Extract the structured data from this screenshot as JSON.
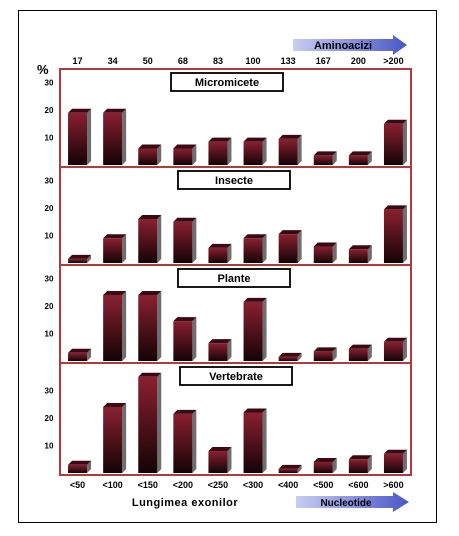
{
  "chart_data": {
    "type": "bar",
    "unit_label": "%",
    "top_axis": {
      "label": "Aminoacizi",
      "ticks": [
        "17",
        "34",
        "50",
        "68",
        "83",
        "100",
        "133",
        "167",
        "200",
        ">200"
      ]
    },
    "bottom_axis": {
      "label": "Nucleotide",
      "ticks": [
        "<50",
        "<100",
        "<150",
        "<200",
        "<250",
        "<300",
        "<400",
        "<500",
        "<600",
        ">600"
      ]
    },
    "xlabel": "Lungimea exonilor",
    "ylim": [
      0,
      36
    ],
    "yticks": [
      10,
      20,
      30
    ],
    "panels": [
      {
        "title": "Micromicete",
        "values": [
          19,
          19,
          6,
          6,
          8.5,
          8.5,
          9.5,
          3.5,
          3.5,
          15
        ]
      },
      {
        "title": "Insecte",
        "values": [
          1.5,
          9,
          16,
          15,
          5.5,
          9,
          10.5,
          6,
          5,
          19.5
        ]
      },
      {
        "title": "Plante",
        "values": [
          3,
          24,
          24,
          14.5,
          6.5,
          21.5,
          1.5,
          3.5,
          4.5,
          7
        ]
      },
      {
        "title": "Vertebrate",
        "values": [
          3,
          24,
          35,
          21.5,
          8,
          22,
          1.5,
          4,
          5,
          7
        ]
      }
    ],
    "colors": {
      "panel_border": "#b23a3a",
      "bar_light": "#8a2030",
      "bar_dark": "#140306",
      "bar_side": "#6e6e6e",
      "arrow_light": "#c8cdf2",
      "arrow_dark": "#4a56c8"
    }
  }
}
